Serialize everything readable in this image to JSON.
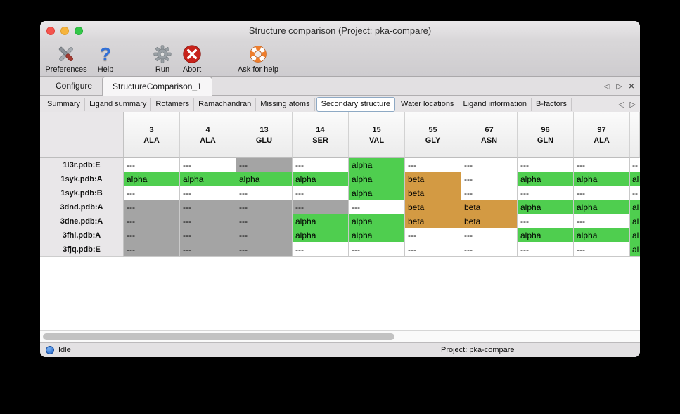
{
  "window": {
    "title": "Structure comparison (Project: pka-compare)"
  },
  "toolbar": {
    "items": [
      {
        "label": "Preferences",
        "icon": "preferences-tools-icon"
      },
      {
        "label": "Help",
        "icon": "help-question-icon"
      },
      {
        "label": "Run",
        "icon": "run-gear-icon"
      },
      {
        "label": "Abort",
        "icon": "abort-icon"
      },
      {
        "label": "Ask for help",
        "icon": "lifebuoy-icon"
      }
    ]
  },
  "main_tabs": {
    "items": [
      {
        "label": "Configure",
        "active": false
      },
      {
        "label": "StructureComparison_1",
        "active": true
      }
    ],
    "nav": {
      "back": "◁",
      "forward": "▷",
      "close": "×"
    }
  },
  "report_tabs": {
    "items": [
      {
        "label": "Summary",
        "selected": false
      },
      {
        "label": "Ligand summary",
        "selected": false
      },
      {
        "label": "Rotamers",
        "selected": false
      },
      {
        "label": "Ramachandran",
        "selected": false
      },
      {
        "label": "Missing atoms",
        "selected": false
      },
      {
        "label": "Secondary structure",
        "selected": true
      },
      {
        "label": "Water locations",
        "selected": false
      },
      {
        "label": "Ligand information",
        "selected": false
      },
      {
        "label": "B-factors",
        "selected": false
      }
    ],
    "nav": {
      "back": "◁",
      "forward": "▷"
    }
  },
  "table": {
    "columns": [
      {
        "num": "3",
        "res": "ALA"
      },
      {
        "num": "4",
        "res": "ALA"
      },
      {
        "num": "13",
        "res": "GLU"
      },
      {
        "num": "14",
        "res": "SER"
      },
      {
        "num": "15",
        "res": "VAL"
      },
      {
        "num": "55",
        "res": "GLY"
      },
      {
        "num": "67",
        "res": "ASN"
      },
      {
        "num": "96",
        "res": "GLN"
      },
      {
        "num": "97",
        "res": "ALA"
      }
    ],
    "rows": [
      {
        "name": "1l3r.pdb:E",
        "cells": [
          {
            "t": "---",
            "s": "none"
          },
          {
            "t": "---",
            "s": "none"
          },
          {
            "t": "---",
            "s": "missing"
          },
          {
            "t": "---",
            "s": "none"
          },
          {
            "t": "alpha",
            "s": "alpha"
          },
          {
            "t": "---",
            "s": "none"
          },
          {
            "t": "---",
            "s": "none"
          },
          {
            "t": "---",
            "s": "none"
          },
          {
            "t": "---",
            "s": "none"
          }
        ],
        "edge": {
          "t": "--",
          "s": "none"
        }
      },
      {
        "name": "1syk.pdb:A",
        "cells": [
          {
            "t": "alpha",
            "s": "alpha"
          },
          {
            "t": "alpha",
            "s": "alpha"
          },
          {
            "t": "alpha",
            "s": "alpha"
          },
          {
            "t": "alpha",
            "s": "alpha"
          },
          {
            "t": "alpha",
            "s": "alpha"
          },
          {
            "t": "beta",
            "s": "beta"
          },
          {
            "t": "---",
            "s": "none"
          },
          {
            "t": "alpha",
            "s": "alpha"
          },
          {
            "t": "alpha",
            "s": "alpha"
          }
        ],
        "edge": {
          "t": "al",
          "s": "alpha"
        }
      },
      {
        "name": "1syk.pdb:B",
        "cells": [
          {
            "t": "---",
            "s": "none"
          },
          {
            "t": "---",
            "s": "none"
          },
          {
            "t": "---",
            "s": "none"
          },
          {
            "t": "---",
            "s": "none"
          },
          {
            "t": "alpha",
            "s": "alpha"
          },
          {
            "t": "beta",
            "s": "beta"
          },
          {
            "t": "---",
            "s": "none"
          },
          {
            "t": "---",
            "s": "none"
          },
          {
            "t": "---",
            "s": "none"
          }
        ],
        "edge": {
          "t": "--",
          "s": "none"
        }
      },
      {
        "name": "3dnd.pdb:A",
        "cells": [
          {
            "t": "---",
            "s": "missing"
          },
          {
            "t": "---",
            "s": "missing"
          },
          {
            "t": "---",
            "s": "missing"
          },
          {
            "t": "---",
            "s": "missing"
          },
          {
            "t": "---",
            "s": "none"
          },
          {
            "t": "beta",
            "s": "beta"
          },
          {
            "t": "beta",
            "s": "beta"
          },
          {
            "t": "alpha",
            "s": "alpha"
          },
          {
            "t": "alpha",
            "s": "alpha"
          }
        ],
        "edge": {
          "t": "al",
          "s": "alpha"
        }
      },
      {
        "name": "3dne.pdb:A",
        "cells": [
          {
            "t": "---",
            "s": "missing"
          },
          {
            "t": "---",
            "s": "missing"
          },
          {
            "t": "---",
            "s": "missing"
          },
          {
            "t": "alpha",
            "s": "alpha"
          },
          {
            "t": "alpha",
            "s": "alpha"
          },
          {
            "t": "beta",
            "s": "beta"
          },
          {
            "t": "beta",
            "s": "beta"
          },
          {
            "t": "---",
            "s": "none"
          },
          {
            "t": "---",
            "s": "none"
          }
        ],
        "edge": {
          "t": "al",
          "s": "alpha"
        }
      },
      {
        "name": "3fhi.pdb:A",
        "cells": [
          {
            "t": "---",
            "s": "missing"
          },
          {
            "t": "---",
            "s": "missing"
          },
          {
            "t": "---",
            "s": "missing"
          },
          {
            "t": "alpha",
            "s": "alpha"
          },
          {
            "t": "alpha",
            "s": "alpha"
          },
          {
            "t": "---",
            "s": "none"
          },
          {
            "t": "---",
            "s": "none"
          },
          {
            "t": "alpha",
            "s": "alpha"
          },
          {
            "t": "alpha",
            "s": "alpha"
          }
        ],
        "edge": {
          "t": "al",
          "s": "alpha"
        }
      },
      {
        "name": "3fjq.pdb:E",
        "cells": [
          {
            "t": "---",
            "s": "missing"
          },
          {
            "t": "---",
            "s": "missing"
          },
          {
            "t": "---",
            "s": "missing"
          },
          {
            "t": "---",
            "s": "none"
          },
          {
            "t": "---",
            "s": "none"
          },
          {
            "t": "---",
            "s": "none"
          },
          {
            "t": "---",
            "s": "none"
          },
          {
            "t": "---",
            "s": "none"
          },
          {
            "t": "---",
            "s": "none"
          }
        ],
        "edge": {
          "t": "al",
          "s": "alpha"
        }
      }
    ]
  },
  "status_bar": {
    "state": "Idle",
    "project": "Project: pka-compare"
  },
  "colors": {
    "alpha": "#4fce4f",
    "beta": "#d39a43",
    "missing": "#a4a4a4",
    "none": "#ffffff"
  }
}
